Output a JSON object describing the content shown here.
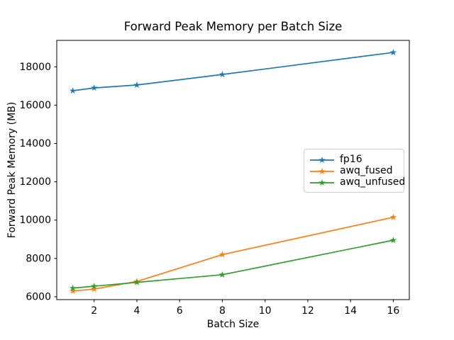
{
  "figure": {
    "title": "Forward Peak Memory per Batch Size",
    "background_color": "#ffffff"
  },
  "chart_data": {
    "type": "line",
    "title": "Forward Peak Memory per Batch Size",
    "xlabel": "Batch Size",
    "ylabel": "Forward Peak Memory (MB)",
    "x": [
      1,
      2,
      4,
      8,
      16
    ],
    "series": [
      {
        "name": "fp16",
        "color": "#1f77b4",
        "marker": "star",
        "values": [
          16750,
          16900,
          17050,
          17600,
          18750
        ]
      },
      {
        "name": "awq_fused",
        "color": "#ff7f0e",
        "marker": "star",
        "values": [
          6300,
          6400,
          6800,
          8200,
          10150
        ]
      },
      {
        "name": "awq_unfused",
        "color": "#2ca02c",
        "marker": "star",
        "values": [
          6450,
          6550,
          6750,
          7150,
          8950
        ]
      }
    ],
    "xlim": [
      0.25,
      16.75
    ],
    "ylim": [
      5850,
      19380
    ],
    "xticks": [
      2,
      4,
      6,
      8,
      10,
      12,
      14,
      16
    ],
    "yticks": [
      6000,
      8000,
      10000,
      12000,
      14000,
      16000,
      18000
    ],
    "xtick_labels": [
      "2",
      "4",
      "6",
      "8",
      "10",
      "12",
      "14",
      "16"
    ],
    "ytick_labels": [
      "6000",
      "8000",
      "10000",
      "12000",
      "14000",
      "16000",
      "18000"
    ],
    "grid": false,
    "legend_position": "center right",
    "axis_color": "#000000"
  }
}
